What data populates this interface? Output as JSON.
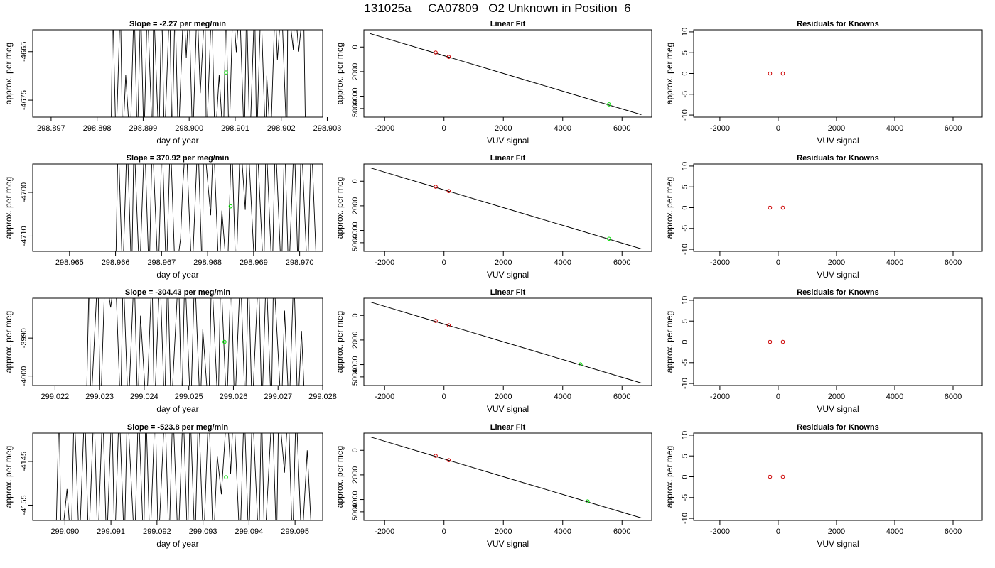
{
  "page_title": "131025a     CA07809   O2 Unknown in Position  6",
  "chart_data": [
    {
      "type": "line",
      "panel": "time-series",
      "row": 0,
      "title": "Slope =  -2.27  per meg/min",
      "xlabel": "day of year",
      "ylabel": "approx. per meg",
      "xlim": [
        298.8966,
        298.9029
      ],
      "ylim": [
        -4678.5,
        -4660.5
      ],
      "xticks": [
        298.897,
        298.898,
        298.899,
        298.9,
        298.901,
        298.902,
        298.903
      ],
      "xtick_labels": [
        "298.897",
        "298.898",
        "298.899",
        "298.900",
        "298.901",
        "298.902",
        "298.903"
      ],
      "yticks": [
        -4665,
        -4675
      ],
      "ytick_labels": [
        "-4665",
        "-4675"
      ],
      "line_color": "#000000",
      "line_x_range": [
        298.8983,
        298.9026
      ],
      "line_crossings": 56,
      "highlight_point": {
        "x": 298.9008,
        "y": -4669.3,
        "color": "#00dd00"
      }
    },
    {
      "type": "scatter",
      "panel": "linear-fit",
      "row": 0,
      "title": "Linear Fit",
      "xlabel": "VUV signal",
      "ylabel": "approx. per meg",
      "xlim": [
        -2700,
        7000
      ],
      "ylim": [
        -5700,
        1400
      ],
      "xticks": [
        -2000,
        0,
        2000,
        4000,
        6000
      ],
      "xtick_labels": [
        "-2000",
        "0",
        "2000",
        "4000",
        "6000"
      ],
      "yticks": [
        0,
        -2000,
        -4000,
        -5000
      ],
      "ytick_labels": [
        "0",
        "2000",
        "4000",
        "5000"
      ],
      "fit_line": {
        "x": [
          -2500,
          6650
        ],
        "y": [
          1100,
          -5500
        ]
      },
      "known_points": {
        "x": [
          -280,
          160
        ],
        "y": [
          -450,
          -800
        ],
        "color": "#cc0000"
      },
      "unknown_point": {
        "x": 5560,
        "y": -4660,
        "color": "#00dd00"
      }
    },
    {
      "type": "scatter",
      "panel": "residuals",
      "row": 0,
      "title": "Residuals for Knowns",
      "xlabel": "VUV signal",
      "ylabel": "approx. per meg",
      "xlim": [
        -2900,
        7000
      ],
      "ylim": [
        -10.5,
        10.5
      ],
      "xticks": [
        -2000,
        0,
        2000,
        4000,
        6000
      ],
      "xtick_labels": [
        "-2000",
        "0",
        "2000",
        "4000",
        "6000"
      ],
      "yticks": [
        10,
        5,
        0,
        -5,
        -10
      ],
      "ytick_labels": [
        "10",
        "5",
        "0",
        "-5",
        "-10"
      ],
      "points": {
        "x": [
          -280,
          160
        ],
        "y": [
          0,
          0
        ],
        "color": "#cc0000"
      }
    },
    {
      "type": "line",
      "panel": "time-series",
      "row": 1,
      "title": "Slope =  370.92  per meg/min",
      "xlabel": "day of year",
      "ylabel": "approx. per meg",
      "xlim": [
        298.9642,
        298.9705
      ],
      "ylim": [
        -4713.5,
        -4693.5
      ],
      "xticks": [
        298.965,
        298.966,
        298.967,
        298.968,
        298.969,
        298.97
      ],
      "xtick_labels": [
        "298.965",
        "298.966",
        "298.967",
        "298.968",
        "298.969",
        "298.970"
      ],
      "yticks": [
        -4700,
        -4710
      ],
      "ytick_labels": [
        "-4700",
        "-4710"
      ],
      "line_color": "#000000",
      "line_x_range": [
        298.966,
        298.9704
      ],
      "line_crossings": 46,
      "highlight_point": {
        "x": 298.9685,
        "y": -4703.2,
        "color": "#00dd00"
      }
    },
    {
      "type": "scatter",
      "panel": "linear-fit",
      "row": 1,
      "title": "Linear Fit",
      "xlabel": "VUV signal",
      "ylabel": "approx. per meg",
      "xlim": [
        -2700,
        7000
      ],
      "ylim": [
        -5700,
        1400
      ],
      "xticks": [
        -2000,
        0,
        2000,
        4000,
        6000
      ],
      "xtick_labels": [
        "-2000",
        "0",
        "2000",
        "4000",
        "6000"
      ],
      "yticks": [
        0,
        -2000,
        -4000,
        -5000
      ],
      "ytick_labels": [
        "0",
        "2000",
        "4000",
        "5000"
      ],
      "fit_line": {
        "x": [
          -2500,
          6650
        ],
        "y": [
          1100,
          -5500
        ]
      },
      "known_points": {
        "x": [
          -280,
          160
        ],
        "y": [
          -450,
          -800
        ],
        "color": "#cc0000"
      },
      "unknown_point": {
        "x": 5560,
        "y": -4680,
        "color": "#00dd00"
      }
    },
    {
      "type": "scatter",
      "panel": "residuals",
      "row": 1,
      "title": "Residuals for Knowns",
      "xlabel": "VUV signal",
      "ylabel": "approx. per meg",
      "xlim": [
        -2900,
        7000
      ],
      "ylim": [
        -10.5,
        10.5
      ],
      "xticks": [
        -2000,
        0,
        2000,
        4000,
        6000
      ],
      "xtick_labels": [
        "-2000",
        "0",
        "2000",
        "4000",
        "6000"
      ],
      "yticks": [
        10,
        5,
        0,
        -5,
        -10
      ],
      "ytick_labels": [
        "10",
        "5",
        "0",
        "-5",
        "-10"
      ],
      "points": {
        "x": [
          -280,
          160
        ],
        "y": [
          0,
          0
        ],
        "color": "#cc0000"
      }
    },
    {
      "type": "line",
      "panel": "time-series",
      "row": 2,
      "title": "Slope =  -304.43  per meg/min",
      "xlabel": "day of year",
      "ylabel": "approx. per meg",
      "xlim": [
        299.0215,
        299.028
      ],
      "ylim": [
        -4002.5,
        -3979.5
      ],
      "xticks": [
        299.022,
        299.023,
        299.024,
        299.025,
        299.026,
        299.027,
        299.028
      ],
      "xtick_labels": [
        "299.022",
        "299.023",
        "299.024",
        "299.025",
        "299.026",
        "299.027",
        "299.028"
      ],
      "yticks": [
        -3990,
        -4000
      ],
      "ytick_labels": [
        "-3990",
        "-4000"
      ],
      "line_color": "#000000",
      "line_x_range": [
        299.0227,
        299.0277
      ],
      "line_crossings": 50,
      "highlight_point": {
        "x": 299.0258,
        "y": -3991.0,
        "color": "#00dd00"
      }
    },
    {
      "type": "scatter",
      "panel": "linear-fit",
      "row": 2,
      "title": "Linear Fit",
      "xlabel": "VUV signal",
      "ylabel": "approx. per meg",
      "xlim": [
        -2700,
        7000
      ],
      "ylim": [
        -5700,
        1400
      ],
      "xticks": [
        -2000,
        0,
        2000,
        4000,
        6000
      ],
      "xtick_labels": [
        "-2000",
        "0",
        "2000",
        "4000",
        "6000"
      ],
      "yticks": [
        0,
        -2000,
        -4000,
        -5000
      ],
      "ytick_labels": [
        "0",
        "2000",
        "4000",
        "5000"
      ],
      "fit_line": {
        "x": [
          -2500,
          6650
        ],
        "y": [
          1100,
          -5500
        ]
      },
      "known_points": {
        "x": [
          -280,
          160
        ],
        "y": [
          -450,
          -800
        ],
        "color": "#cc0000"
      },
      "unknown_point": {
        "x": 4600,
        "y": -3980,
        "color": "#00dd00"
      }
    },
    {
      "type": "scatter",
      "panel": "residuals",
      "row": 2,
      "title": "Residuals for Knowns",
      "xlabel": "VUV signal",
      "ylabel": "approx. per meg",
      "xlim": [
        -2900,
        7000
      ],
      "ylim": [
        -10.5,
        10.5
      ],
      "xticks": [
        -2000,
        0,
        2000,
        4000,
        6000
      ],
      "xtick_labels": [
        "-2000",
        "0",
        "2000",
        "4000",
        "6000"
      ],
      "yticks": [
        10,
        5,
        0,
        -5,
        -10
      ],
      "ytick_labels": [
        "10",
        "5",
        "0",
        "-5",
        "-10"
      ],
      "points": {
        "x": [
          -280,
          160
        ],
        "y": [
          0,
          0
        ],
        "color": "#cc0000"
      }
    },
    {
      "type": "line",
      "panel": "time-series",
      "row": 3,
      "title": "Slope =  -523.8  per meg/min",
      "xlabel": "day of year",
      "ylabel": "approx. per meg",
      "xlim": [
        299.0893,
        299.0956
      ],
      "ylim": [
        -4158.5,
        -4138.5
      ],
      "xticks": [
        299.09,
        299.091,
        299.092,
        299.093,
        299.094,
        299.095
      ],
      "xtick_labels": [
        "299.090",
        "299.091",
        "299.092",
        "299.093",
        "299.094",
        "299.095"
      ],
      "yticks": [
        -4145,
        -4155
      ],
      "ytick_labels": [
        "-4145",
        "-4155"
      ],
      "line_color": "#000000",
      "line_x_range": [
        299.0898,
        299.0954
      ],
      "line_crossings": 58,
      "highlight_point": {
        "x": 299.0935,
        "y": -4148.6,
        "color": "#00dd00"
      }
    },
    {
      "type": "scatter",
      "panel": "linear-fit",
      "row": 3,
      "title": "Linear Fit",
      "xlabel": "VUV signal",
      "ylabel": "approx. per meg",
      "xlim": [
        -2700,
        7000
      ],
      "ylim": [
        -5700,
        1400
      ],
      "xticks": [
        -2000,
        0,
        2000,
        4000,
        6000
      ],
      "xtick_labels": [
        "-2000",
        "0",
        "2000",
        "4000",
        "6000"
      ],
      "yticks": [
        0,
        -2000,
        -4000,
        -5000
      ],
      "ytick_labels": [
        "0",
        "2000",
        "4000",
        "5000"
      ],
      "fit_line": {
        "x": [
          -2500,
          6650
        ],
        "y": [
          1100,
          -5500
        ]
      },
      "known_points": {
        "x": [
          -280,
          160
        ],
        "y": [
          -450,
          -800
        ],
        "color": "#cc0000"
      },
      "unknown_point": {
        "x": 4840,
        "y": -4150,
        "color": "#00dd00"
      }
    },
    {
      "type": "scatter",
      "panel": "residuals",
      "row": 3,
      "title": "Residuals for Knowns",
      "xlabel": "VUV signal",
      "ylabel": "approx. per meg",
      "xlim": [
        -2900,
        7000
      ],
      "ylim": [
        -10.5,
        10.5
      ],
      "xticks": [
        -2000,
        0,
        2000,
        4000,
        6000
      ],
      "xtick_labels": [
        "-2000",
        "0",
        "2000",
        "4000",
        "6000"
      ],
      "yticks": [
        10,
        5,
        0,
        -5,
        -10
      ],
      "ytick_labels": [
        "10",
        "5",
        "0",
        "-5",
        "-10"
      ],
      "points": {
        "x": [
          -280,
          160
        ],
        "y": [
          0,
          0
        ],
        "color": "#cc0000"
      }
    }
  ]
}
